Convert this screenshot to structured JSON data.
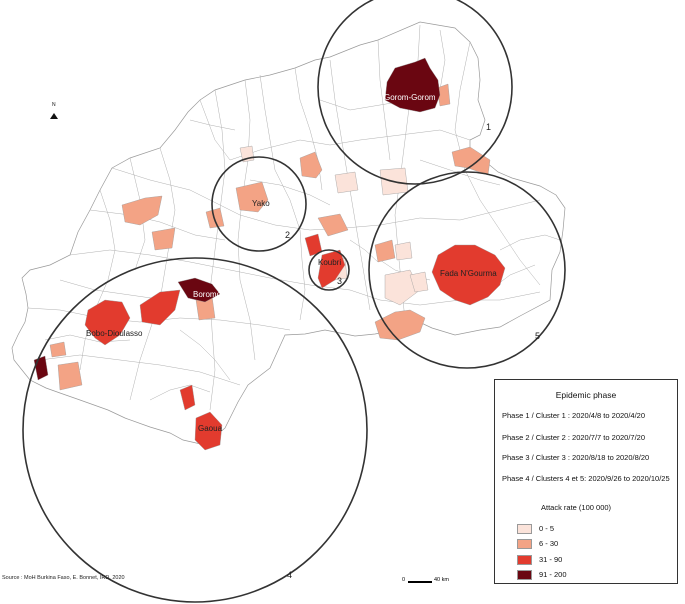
{
  "map": {
    "north_label": "N",
    "north_icon": "north-arrow-icon",
    "colors": {
      "boundary": "#9a9a9a",
      "cluster_circle": "#333333",
      "class_0_5": "#fbe3da",
      "class_6_30": "#f3a385",
      "class_31_90": "#e23b2e",
      "class_91_200": "#6a0611"
    },
    "places": {
      "gorom_gorom": "Gorom-Gorom",
      "yako": "Yako",
      "kouba": "Koubri",
      "fada": "Fada N'Gourma",
      "boromo": "Boromo",
      "bobo": "Bobo-Dioulasso",
      "gaoua": "Gaoua"
    },
    "cluster_numbers": [
      "1",
      "2",
      "3",
      "4",
      "5"
    ]
  },
  "legend": {
    "title": "Epidemic phase",
    "phases": [
      "Phase 1 / Cluster 1 : 2020/4/8 to 2020/4/20",
      "Phase 2 / Cluster 2 : 2020/7/7 to 2020/7/20",
      "Phase 3 / Cluster 3 : 2020/8/18 to 2020/8/20",
      "Phase 4 / Clusters 4 et 5: 2020/9/26 to 2020/10/25"
    ],
    "attack_rate_title": "Attack rate (100 000)",
    "classes": [
      {
        "label": "0 - 5",
        "color": "#fbe3da"
      },
      {
        "label": "6 - 30",
        "color": "#f3a385"
      },
      {
        "label": "31 - 90",
        "color": "#e23b2e"
      },
      {
        "label": "91 - 200",
        "color": "#6a0611"
      }
    ]
  },
  "source": "Source : MoH Burkina Faso, E. Bonnet, IRD, 2020",
  "scale": {
    "zero": "0",
    "distance": "40 km"
  }
}
